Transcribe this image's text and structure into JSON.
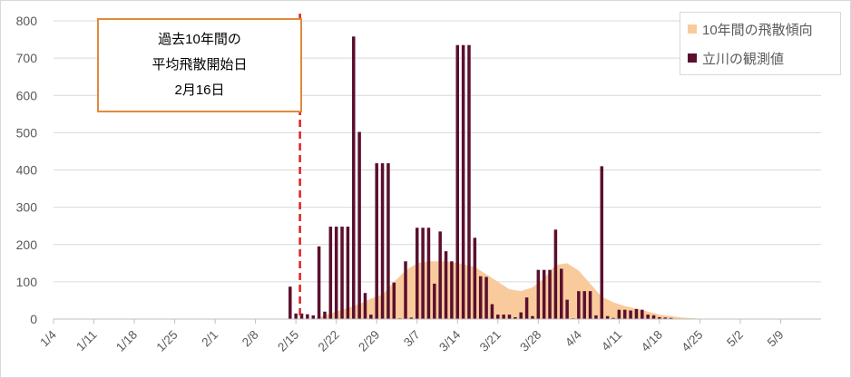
{
  "chart_data": {
    "type": "bar",
    "start_date": "1/4",
    "x_tick_labels": [
      "1/4",
      "1/11",
      "1/18",
      "1/25",
      "2/1",
      "2/8",
      "2/15",
      "2/22",
      "2/29",
      "3/7",
      "3/14",
      "3/21",
      "3/28",
      "4/4",
      "4/11",
      "4/18",
      "4/25",
      "5/2",
      "5/9"
    ],
    "y_tick_labels": [
      "0",
      "100",
      "200",
      "300",
      "400",
      "500",
      "600",
      "700",
      "800"
    ],
    "ylim": [
      0,
      800
    ],
    "grid": "horizontal",
    "legend_position": "top-right",
    "colors": {
      "trend": "#f9cb9c",
      "observed": "#5b0f2e",
      "marker": "#e02020",
      "annotation_border": "#e08a3c"
    },
    "series": [
      {
        "name": "10年間の飛散傾向",
        "kind": "area",
        "points": [
          [
            "2/18",
            0
          ],
          [
            "2/20",
            10
          ],
          [
            "2/22",
            20
          ],
          [
            "2/24",
            30
          ],
          [
            "2/26",
            40
          ],
          [
            "2/28",
            55
          ],
          [
            "3/1",
            65
          ],
          [
            "3/3",
            100
          ],
          [
            "3/5",
            130
          ],
          [
            "3/7",
            150
          ],
          [
            "3/9",
            155
          ],
          [
            "3/12",
            155
          ],
          [
            "3/14",
            150
          ],
          [
            "3/17",
            140
          ],
          [
            "3/19",
            120
          ],
          [
            "3/21",
            100
          ],
          [
            "3/23",
            80
          ],
          [
            "3/25",
            75
          ],
          [
            "3/27",
            85
          ],
          [
            "3/29",
            110
          ],
          [
            "3/31",
            145
          ],
          [
            "4/2",
            150
          ],
          [
            "4/4",
            130
          ],
          [
            "4/6",
            95
          ],
          [
            "4/8",
            60
          ],
          [
            "4/10",
            45
          ],
          [
            "4/12",
            35
          ],
          [
            "4/14",
            28
          ],
          [
            "4/16",
            20
          ],
          [
            "4/18",
            12
          ],
          [
            "4/20",
            8
          ],
          [
            "4/22",
            4
          ],
          [
            "4/24",
            2
          ],
          [
            "4/26",
            0
          ]
        ]
      },
      {
        "name": "立川の観測値",
        "kind": "bar",
        "points": [
          [
            "2/14",
            87
          ],
          [
            "2/15",
            15
          ],
          [
            "2/16",
            15
          ],
          [
            "2/17",
            13
          ],
          [
            "2/18",
            10
          ],
          [
            "2/19",
            195
          ],
          [
            "2/20",
            20
          ],
          [
            "2/21",
            248
          ],
          [
            "2/22",
            248
          ],
          [
            "2/23",
            248
          ],
          [
            "2/24",
            248
          ],
          [
            "2/25",
            758
          ],
          [
            "2/26",
            502
          ],
          [
            "2/27",
            70
          ],
          [
            "2/28",
            12
          ],
          [
            "2/29",
            418
          ],
          [
            "3/1",
            418
          ],
          [
            "3/2",
            418
          ],
          [
            "3/3",
            98
          ],
          [
            "3/4",
            2
          ],
          [
            "3/5",
            155
          ],
          [
            "3/6",
            4
          ],
          [
            "3/7",
            245
          ],
          [
            "3/8",
            245
          ],
          [
            "3/9",
            245
          ],
          [
            "3/10",
            95
          ],
          [
            "3/11",
            235
          ],
          [
            "3/12",
            182
          ],
          [
            "3/13",
            155
          ],
          [
            "3/14",
            735
          ],
          [
            "3/15",
            735
          ],
          [
            "3/16",
            735
          ],
          [
            "3/17",
            218
          ],
          [
            "3/18",
            115
          ],
          [
            "3/19",
            113
          ],
          [
            "3/20",
            40
          ],
          [
            "3/21",
            12
          ],
          [
            "3/22",
            12
          ],
          [
            "3/23",
            12
          ],
          [
            "3/24",
            5
          ],
          [
            "3/25",
            18
          ],
          [
            "3/26",
            58
          ],
          [
            "3/27",
            8
          ],
          [
            "3/28",
            132
          ],
          [
            "3/29",
            132
          ],
          [
            "3/30",
            132
          ],
          [
            "3/31",
            240
          ],
          [
            "4/1",
            135
          ],
          [
            "4/2",
            52
          ],
          [
            "4/3",
            2
          ],
          [
            "4/4",
            75
          ],
          [
            "4/5",
            75
          ],
          [
            "4/6",
            75
          ],
          [
            "4/7",
            10
          ],
          [
            "4/8",
            410
          ],
          [
            "4/9",
            8
          ],
          [
            "4/10",
            3
          ],
          [
            "4/11",
            25
          ],
          [
            "4/12",
            25
          ],
          [
            "4/13",
            23
          ],
          [
            "4/14",
            27
          ],
          [
            "4/15",
            25
          ],
          [
            "4/16",
            12
          ],
          [
            "4/17",
            10
          ],
          [
            "4/18",
            5
          ],
          [
            "4/19",
            4
          ],
          [
            "4/20",
            3
          ]
        ]
      }
    ],
    "marker_line": {
      "date": "2/16",
      "label_lines": [
        "過去10年間の",
        "平均飛散開始日",
        "2月16日"
      ]
    }
  }
}
